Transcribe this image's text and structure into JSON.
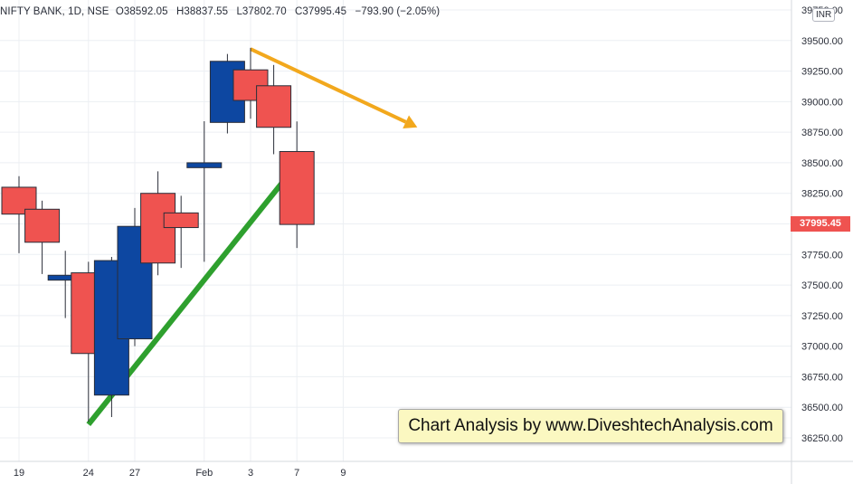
{
  "header": {
    "symbol": "NIFTY BANK, 1D, NSE",
    "open": "O38592.05",
    "high": "H38837.55",
    "low": "L37802.70",
    "close": "C37995.45",
    "change": "−793.90 (−2.05%)"
  },
  "currency": "INR",
  "last_price": "37995.45",
  "watermark": "Chart Analysis by www.DiveshtechAnalysis.com",
  "chart_data": {
    "type": "candlestick",
    "y_axis_ticks": [
      "39750.00",
      "39500.00",
      "39250.00",
      "39000.00",
      "38750.00",
      "38500.00",
      "38250.00",
      "38000.00",
      "37750.00",
      "37500.00",
      "37250.00",
      "37000.00",
      "36750.00",
      "36500.00",
      "36250.00"
    ],
    "x_axis_ticks": [
      "19",
      "24",
      "27",
      "Feb",
      "3",
      "7",
      "9"
    ],
    "ylim": [
      36050,
      39800
    ],
    "candles": [
      {
        "slot": 0,
        "open": 38300,
        "high": 38390,
        "low": 37760,
        "close": 38080,
        "color": "red"
      },
      {
        "slot": 1,
        "open": 38120,
        "high": 38190,
        "low": 37590,
        "close": 37850,
        "color": "red"
      },
      {
        "slot": 2,
        "open": 37580,
        "high": 37780,
        "low": 37230,
        "close": 37540,
        "color": "blue"
      },
      {
        "slot": 3,
        "open": 37600,
        "high": 37690,
        "low": 36380,
        "close": 36940,
        "color": "red"
      },
      {
        "slot": 4,
        "open": 36600,
        "high": 37730,
        "low": 36420,
        "close": 37700,
        "color": "blue"
      },
      {
        "slot": 5,
        "open": 37060,
        "high": 38130,
        "low": 37000,
        "close": 37980,
        "color": "blue"
      },
      {
        "slot": 6,
        "open": 38250,
        "high": 38430,
        "low": 37580,
        "close": 37680,
        "color": "red"
      },
      {
        "slot": 7,
        "open": 38090,
        "high": 38230,
        "low": 37640,
        "close": 37970,
        "color": "red"
      },
      {
        "slot": 8,
        "open": 38460,
        "high": 38840,
        "low": 37690,
        "close": 38500,
        "color": "blue"
      },
      {
        "slot": 9,
        "open": 38830,
        "high": 39390,
        "low": 38740,
        "close": 39330,
        "color": "blue"
      },
      {
        "slot": 10,
        "open": 39260,
        "high": 39440,
        "low": 38860,
        "close": 39010,
        "color": "red"
      },
      {
        "slot": 11,
        "open": 39130,
        "high": 39300,
        "low": 38570,
        "close": 38790,
        "color": "red"
      },
      {
        "slot": 12,
        "open": 38592.05,
        "high": 38837.55,
        "low": 37802.7,
        "close": 37995.45,
        "color": "red"
      }
    ],
    "slots_to_ticks": {
      "0": "19",
      "3": "24",
      "5": "27",
      "8": "Feb",
      "10": "3",
      "12": "7",
      "14": "9"
    },
    "annotations": [
      {
        "type": "arrow",
        "color": "#2ea02e",
        "from": {
          "slot": 3,
          "price": 36360
        },
        "to": {
          "slot": 12.35,
          "price": 38570
        }
      },
      {
        "type": "arrow",
        "color": "#f2a81d",
        "from": {
          "slot": 10,
          "price": 39430
        },
        "to": {
          "slot": 17.2,
          "price": 38790
        }
      }
    ],
    "colors": {
      "up": "#0d47a1",
      "down": "#ef5350",
      "wick": "#2a2e39"
    }
  }
}
